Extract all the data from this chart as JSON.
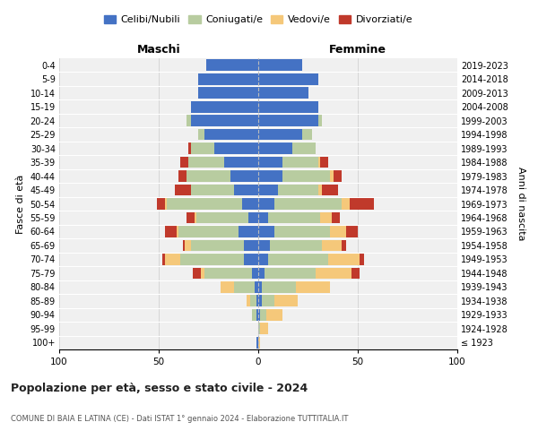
{
  "age_groups": [
    "100+",
    "95-99",
    "90-94",
    "85-89",
    "80-84",
    "75-79",
    "70-74",
    "65-69",
    "60-64",
    "55-59",
    "50-54",
    "45-49",
    "40-44",
    "35-39",
    "30-34",
    "25-29",
    "20-24",
    "15-19",
    "10-14",
    "5-9",
    "0-4"
  ],
  "birth_years": [
    "≤ 1923",
    "1924-1928",
    "1929-1933",
    "1934-1938",
    "1939-1943",
    "1944-1948",
    "1949-1953",
    "1954-1958",
    "1959-1963",
    "1964-1968",
    "1969-1973",
    "1974-1978",
    "1979-1983",
    "1984-1988",
    "1989-1993",
    "1994-1998",
    "1999-2003",
    "2004-2008",
    "2009-2013",
    "2014-2018",
    "2019-2023"
  ],
  "colors": {
    "celibi": "#4472c4",
    "coniugati": "#b8cca0",
    "vedovi": "#f5c87a",
    "divorziati": "#c0392b"
  },
  "maschi": {
    "celibi": [
      1,
      0,
      1,
      1,
      2,
      3,
      7,
      7,
      10,
      5,
      8,
      12,
      14,
      17,
      22,
      27,
      34,
      34,
      30,
      30,
      26
    ],
    "coniugati": [
      0,
      0,
      2,
      3,
      10,
      24,
      32,
      27,
      30,
      26,
      38,
      22,
      22,
      18,
      12,
      3,
      2,
      0,
      0,
      0,
      0
    ],
    "vedovi": [
      0,
      0,
      0,
      2,
      7,
      2,
      8,
      3,
      1,
      1,
      1,
      0,
      0,
      0,
      0,
      0,
      0,
      0,
      0,
      0,
      0
    ],
    "divorziati": [
      0,
      0,
      0,
      0,
      0,
      4,
      1,
      1,
      6,
      4,
      4,
      8,
      4,
      4,
      1,
      0,
      0,
      0,
      0,
      0,
      0
    ]
  },
  "femmine": {
    "celibi": [
      0,
      0,
      1,
      2,
      2,
      3,
      5,
      6,
      8,
      5,
      8,
      10,
      12,
      12,
      17,
      22,
      30,
      30,
      25,
      30,
      22
    ],
    "coniugati": [
      0,
      1,
      3,
      6,
      17,
      26,
      30,
      26,
      28,
      26,
      34,
      20,
      24,
      18,
      12,
      5,
      2,
      0,
      0,
      0,
      0
    ],
    "vedovi": [
      1,
      4,
      8,
      12,
      17,
      18,
      16,
      10,
      8,
      6,
      4,
      2,
      2,
      1,
      0,
      0,
      0,
      0,
      0,
      0,
      0
    ],
    "divorziati": [
      0,
      0,
      0,
      0,
      0,
      4,
      2,
      2,
      6,
      4,
      12,
      8,
      4,
      4,
      0,
      0,
      0,
      0,
      0,
      0,
      0
    ]
  },
  "title": "Popolazione per età, sesso e stato civile - 2024",
  "subtitle": "COMUNE DI BAIA E LATINA (CE) - Dati ISTAT 1° gennaio 2024 - Elaborazione TUTTITALIA.IT",
  "xlabel_left": "Maschi",
  "xlabel_right": "Femmine",
  "ylabel_left": "Fasce di età",
  "ylabel_right": "Anni di nascita",
  "xlim": 100,
  "legend_labels": [
    "Celibi/Nubili",
    "Coniugati/e",
    "Vedovi/e",
    "Divorziati/e"
  ],
  "background_color": "#ffffff",
  "bar_bg_color": "#f0f0f0"
}
